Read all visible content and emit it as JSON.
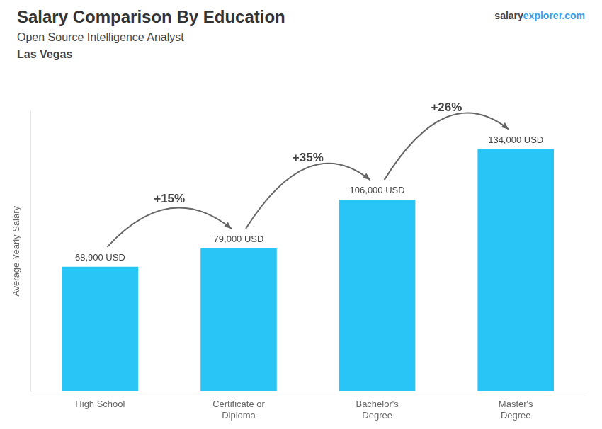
{
  "chart_data": {
    "type": "bar",
    "title": "Salary Comparison By Education",
    "subtitle": "Open Source Intelligence Analyst",
    "location": "Las Vegas",
    "watermark": [
      "salary",
      "explorer",
      ".com"
    ],
    "y_label": "Average Yearly Salary",
    "categories": [
      "High School",
      "Certificate or\nDiploma",
      "Bachelor's\nDegree",
      "Master's\nDegree"
    ],
    "values": [
      68900,
      79000,
      106000,
      134000
    ],
    "value_labels": [
      "68,900 USD",
      "79,000 USD",
      "106,000 USD",
      "134,000 USD"
    ],
    "data_labels": true,
    "pct_labels": [
      "+15%",
      "+35%",
      "+26%"
    ],
    "color": "#29c5f6",
    "ylim": [
      0,
      155000
    ],
    "grid": false,
    "tick_labels": "x"
  }
}
